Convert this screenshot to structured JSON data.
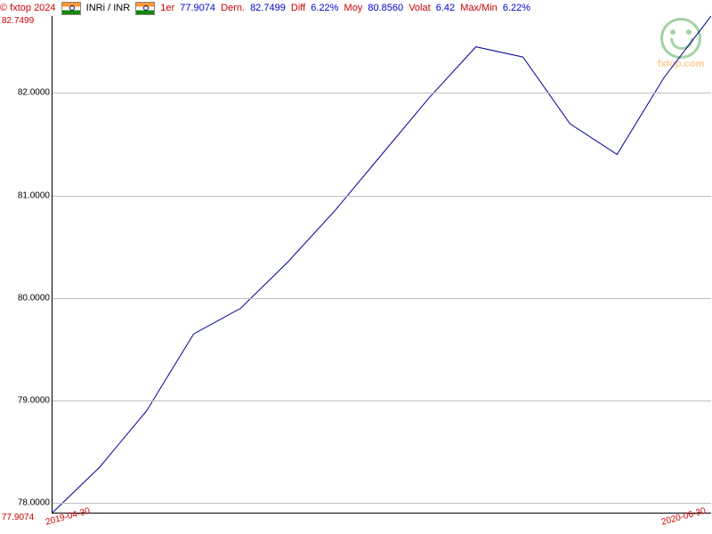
{
  "header": {
    "copyright": "© fxtop 2024",
    "pair": "INRi / INR",
    "first_label": "1er",
    "first_value": "77.9074",
    "last_label": "Dern.",
    "last_value": "82.7499",
    "diff_label": "Diff",
    "diff_value": "6.22%",
    "moy_label": "Moy",
    "moy_value": "80.8560",
    "volat_label": "Volat",
    "volat_value": "6.42",
    "maxmin_label": "Max/Min",
    "maxmin_value": "6.22%"
  },
  "watermark": {
    "text": "fxtop.com"
  },
  "chart": {
    "type": "line",
    "y_max_label": "82.7499",
    "y_min_label": "77.9074",
    "x_start_label": "2019-04-30",
    "x_end_label": "2020-06-30",
    "line_color": "#000099",
    "grid_color": "#c0c0c0",
    "background_color": "#ffffff",
    "y_axis": {
      "min": 77.9074,
      "max": 82.7499,
      "ticks": [
        78.0,
        79.0,
        80.0,
        81.0,
        82.0
      ],
      "tick_labels": [
        "78.0000",
        "79.0000",
        "80.0000",
        "81.0000",
        "82.0000"
      ]
    },
    "x_axis": {
      "min": 0,
      "max": 14
    },
    "data": [
      {
        "x": 0,
        "y": 77.9074
      },
      {
        "x": 1,
        "y": 78.35
      },
      {
        "x": 2,
        "y": 78.9
      },
      {
        "x": 3,
        "y": 79.65
      },
      {
        "x": 4,
        "y": 79.9
      },
      {
        "x": 5,
        "y": 80.35
      },
      {
        "x": 6,
        "y": 80.85
      },
      {
        "x": 7,
        "y": 81.4
      },
      {
        "x": 8,
        "y": 81.95
      },
      {
        "x": 9,
        "y": 82.45
      },
      {
        "x": 10,
        "y": 82.35
      },
      {
        "x": 11,
        "y": 81.7
      },
      {
        "x": 12,
        "y": 81.4
      },
      {
        "x": 13,
        "y": 82.15
      },
      {
        "x": 14,
        "y": 82.7499
      }
    ]
  }
}
